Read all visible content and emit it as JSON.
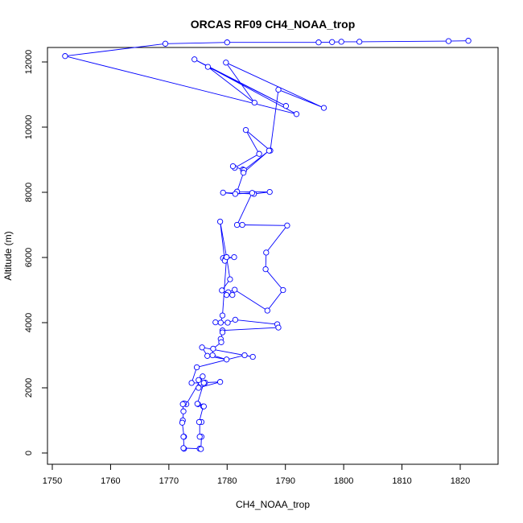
{
  "chart_data": {
    "type": "line",
    "title": "ORCAS RF09 CH4_NOAA_trop",
    "xlabel": "CH4_NOAA_trop",
    "ylabel": "Altitude (m)",
    "xlim": [
      1750,
      1822
    ],
    "ylim": [
      0,
      12650
    ],
    "x_ticks": [
      1750,
      1760,
      1770,
      1780,
      1790,
      1800,
      1810,
      1820
    ],
    "y_ticks": [
      0,
      2000,
      4000,
      6000,
      8000,
      10000,
      12000
    ],
    "line_color": "#0000ff",
    "marker": "open-circle",
    "grid": false,
    "series": [
      {
        "points": [
          [
            1821.4,
            12650
          ],
          [
            1818.0,
            12640
          ],
          [
            1802.7,
            12620
          ],
          [
            1799.6,
            12620
          ],
          [
            1798.0,
            12610
          ],
          [
            1795.7,
            12600
          ],
          [
            1780.0,
            12600
          ],
          [
            1769.4,
            12560
          ],
          [
            1752.2,
            12180
          ],
          [
            1791.9,
            10400
          ],
          [
            1774.4,
            12080
          ],
          [
            1790.1,
            10650
          ],
          [
            1776.7,
            11850
          ],
          [
            1784.7,
            10750
          ],
          [
            1779.8,
            11980
          ],
          [
            1796.6,
            10590
          ],
          [
            1788.8,
            11150
          ],
          [
            1787.4,
            9280
          ],
          [
            1783.2,
            9910
          ],
          [
            1785.5,
            9180
          ],
          [
            1781.3,
            8750
          ],
          [
            1781.0,
            8800
          ],
          [
            1782.7,
            8700
          ],
          [
            1782.9,
            8680
          ],
          [
            1787.2,
            9280
          ],
          [
            1782.8,
            8600
          ],
          [
            1781.7,
            8020
          ],
          [
            1787.3,
            8010
          ],
          [
            1784.6,
            7950
          ],
          [
            1779.3,
            7990
          ],
          [
            1781.4,
            7950
          ],
          [
            1784.3,
            7980
          ],
          [
            1781.7,
            7000
          ],
          [
            1782.6,
            7000
          ],
          [
            1790.3,
            6980
          ],
          [
            1786.7,
            6150
          ],
          [
            1786.6,
            5640
          ],
          [
            1789.6,
            5000
          ],
          [
            1786.9,
            4370
          ],
          [
            1781.3,
            5010
          ],
          [
            1780.2,
            4930
          ],
          [
            1779.9,
            4850
          ],
          [
            1780.9,
            4850
          ],
          [
            1779.1,
            4990
          ],
          [
            1780.5,
            5330
          ],
          [
            1779.9,
            6010
          ],
          [
            1779.3,
            5980
          ],
          [
            1781.2,
            6010
          ],
          [
            1779.7,
            5960
          ],
          [
            1779.6,
            5900
          ],
          [
            1778.8,
            7100
          ],
          [
            1779.9,
            6010
          ],
          [
            1779.2,
            4220
          ],
          [
            1778.9,
            4000
          ],
          [
            1778.0,
            4010
          ],
          [
            1780.1,
            4000
          ],
          [
            1781.4,
            4090
          ],
          [
            1788.6,
            3950
          ],
          [
            1788.8,
            3850
          ],
          [
            1779.2,
            3760
          ],
          [
            1779.2,
            3700
          ],
          [
            1778.9,
            3500
          ],
          [
            1779.0,
            3400
          ],
          [
            1777.6,
            3200
          ],
          [
            1777.5,
            3000
          ],
          [
            1779.9,
            2870
          ],
          [
            1776.6,
            2980
          ],
          [
            1775.7,
            3240
          ],
          [
            1784.4,
            2950
          ],
          [
            1783.0,
            3000
          ],
          [
            1774.8,
            2630
          ],
          [
            1773.9,
            2150
          ],
          [
            1775.5,
            2150
          ],
          [
            1776.2,
            2160
          ],
          [
            1778.8,
            2180
          ],
          [
            1775.1,
            2000
          ],
          [
            1775.8,
            2350
          ],
          [
            1773.0,
            1500
          ],
          [
            1772.6,
            1520
          ],
          [
            1772.4,
            1500
          ],
          [
            1772.5,
            1280
          ],
          [
            1772.4,
            1000
          ],
          [
            1772.3,
            930
          ],
          [
            1772.6,
            500
          ],
          [
            1772.5,
            500
          ],
          [
            1772.6,
            130
          ],
          [
            1772.5,
            150
          ],
          [
            1775.3,
            130
          ],
          [
            1775.5,
            120
          ],
          [
            1775.6,
            500
          ],
          [
            1775.3,
            500
          ],
          [
            1775.3,
            950
          ],
          [
            1775.6,
            950
          ],
          [
            1775.2,
            950
          ],
          [
            1775.9,
            1430
          ],
          [
            1776.0,
            1430
          ],
          [
            1775.0,
            1500
          ],
          [
            1774.9,
            1510
          ],
          [
            1776.0,
            2150
          ],
          [
            1775.1,
            2240
          ]
        ]
      }
    ]
  }
}
